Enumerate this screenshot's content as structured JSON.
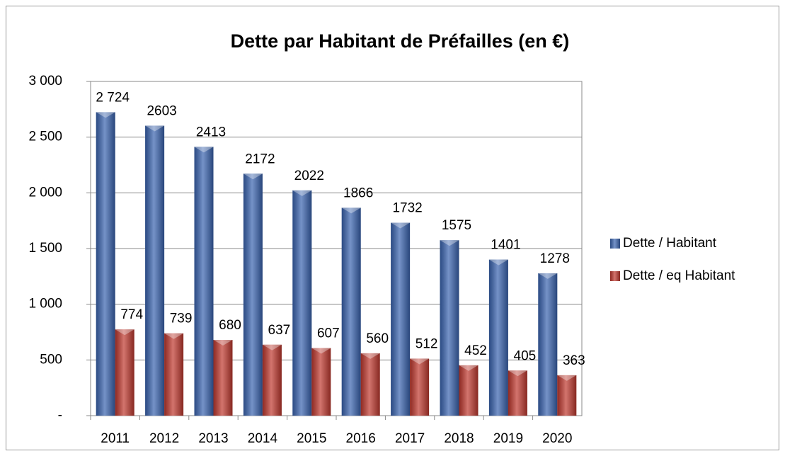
{
  "chart_data": {
    "type": "bar",
    "title": "Dette par Habitant de Préfailles (en €)",
    "categories": [
      "2011",
      "2012",
      "2013",
      "2014",
      "2015",
      "2016",
      "2017",
      "2018",
      "2019",
      "2020"
    ],
    "series": [
      {
        "name": "Dette / Habitant",
        "color": "#3a64b0",
        "values": [
          2724,
          2603,
          2413,
          2172,
          2022,
          1866,
          1732,
          1575,
          1401,
          1278
        ],
        "value_labels": [
          "2 724",
          "2603",
          "2413",
          "2172",
          "2022",
          "1866",
          "1732",
          "1575",
          "1401",
          "1278"
        ]
      },
      {
        "name": "Dette / eq Habitant",
        "color": "#c0392f",
        "values": [
          774,
          739,
          680,
          637,
          607,
          560,
          512,
          452,
          405,
          363
        ]
      }
    ],
    "ylim": [
      0,
      3000
    ],
    "yticks": [
      {
        "value": 0,
        "label": "-"
      },
      500,
      {
        "value": 1000,
        "label": "1 000"
      },
      {
        "value": 1500,
        "label": "1 500"
      },
      {
        "value": 2000,
        "label": "2 000"
      },
      {
        "value": 2500,
        "label": "2 500"
      },
      {
        "value": 3000,
        "label": "3 000"
      }
    ],
    "grid": true,
    "legend": "right"
  }
}
